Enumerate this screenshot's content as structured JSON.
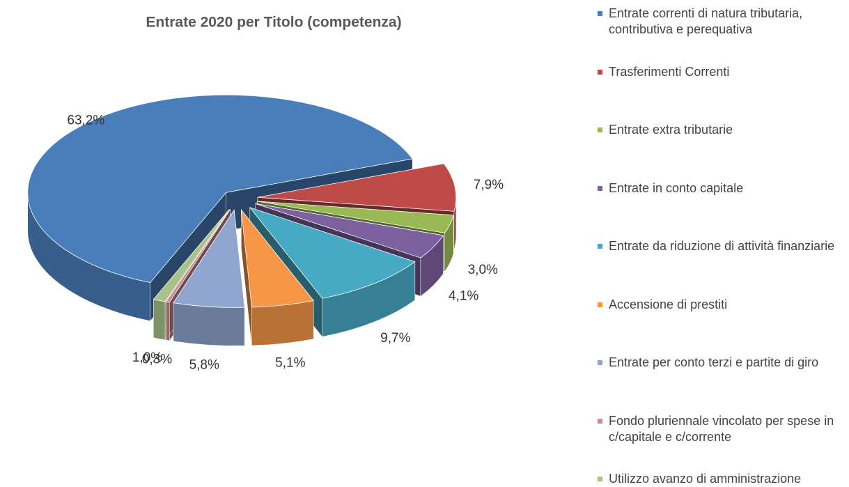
{
  "chart_data": {
    "type": "pie",
    "title": "Entrate 2020 per Titolo  (competenza)",
    "categories": [
      "Entrate correnti di natura tributaria, contributiva e perequativa",
      "Trasferimenti Correnti",
      "Entrate extra tributarie",
      "Entrate in conto capitale",
      "Entrate da riduzione di attività finanziarie",
      "Accensione di prestiti",
      "Entrate per conto terzi e partite di giro",
      "Fondo pluriennale vincolato per spese in c/capitale e c/corrente",
      "Utilizzo avanzo di amministrazione"
    ],
    "values": [
      63.2,
      7.9,
      3.0,
      4.1,
      9.7,
      5.1,
      5.8,
      0.3,
      1.0
    ],
    "value_labels": [
      "63,2%",
      "7,9%",
      "3,0%",
      "4,1%",
      "9,7%",
      "5,1%",
      "5,8%",
      "0,3%",
      "1,0%"
    ],
    "colors": [
      "#4a7ebb",
      "#be4b48",
      "#98b954",
      "#7d60a0",
      "#46aac5",
      "#f79646",
      "#8fa5cf",
      "#c98a88",
      "#a8c289"
    ],
    "legend": "right"
  }
}
